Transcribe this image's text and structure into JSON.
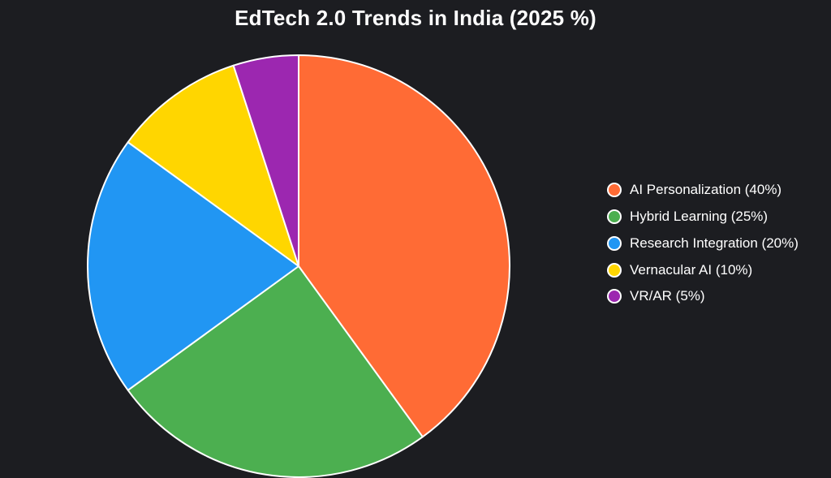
{
  "chart_data": {
    "type": "pie",
    "title": "EdTech 2.0 Trends in India (2025 %)",
    "slices": [
      {
        "label": "AI Personalization (40%)",
        "value": 40,
        "color": "#ff6b35"
      },
      {
        "label": "Hybrid Learning (25%)",
        "value": 25,
        "color": "#4caf50"
      },
      {
        "label": "Research Integration (20%)",
        "value": 20,
        "color": "#2196f3"
      },
      {
        "label": "Vernacular AI (10%)",
        "value": 10,
        "color": "#ffd600"
      },
      {
        "label": "VR/AR (5%)",
        "value": 5,
        "color": "#9c27b0"
      }
    ],
    "legend": {
      "position": "right"
    },
    "start_angle": "12 o'clock",
    "direction": "clockwise",
    "slice_border_color": "#ffffff",
    "background": "#1c1d21"
  }
}
